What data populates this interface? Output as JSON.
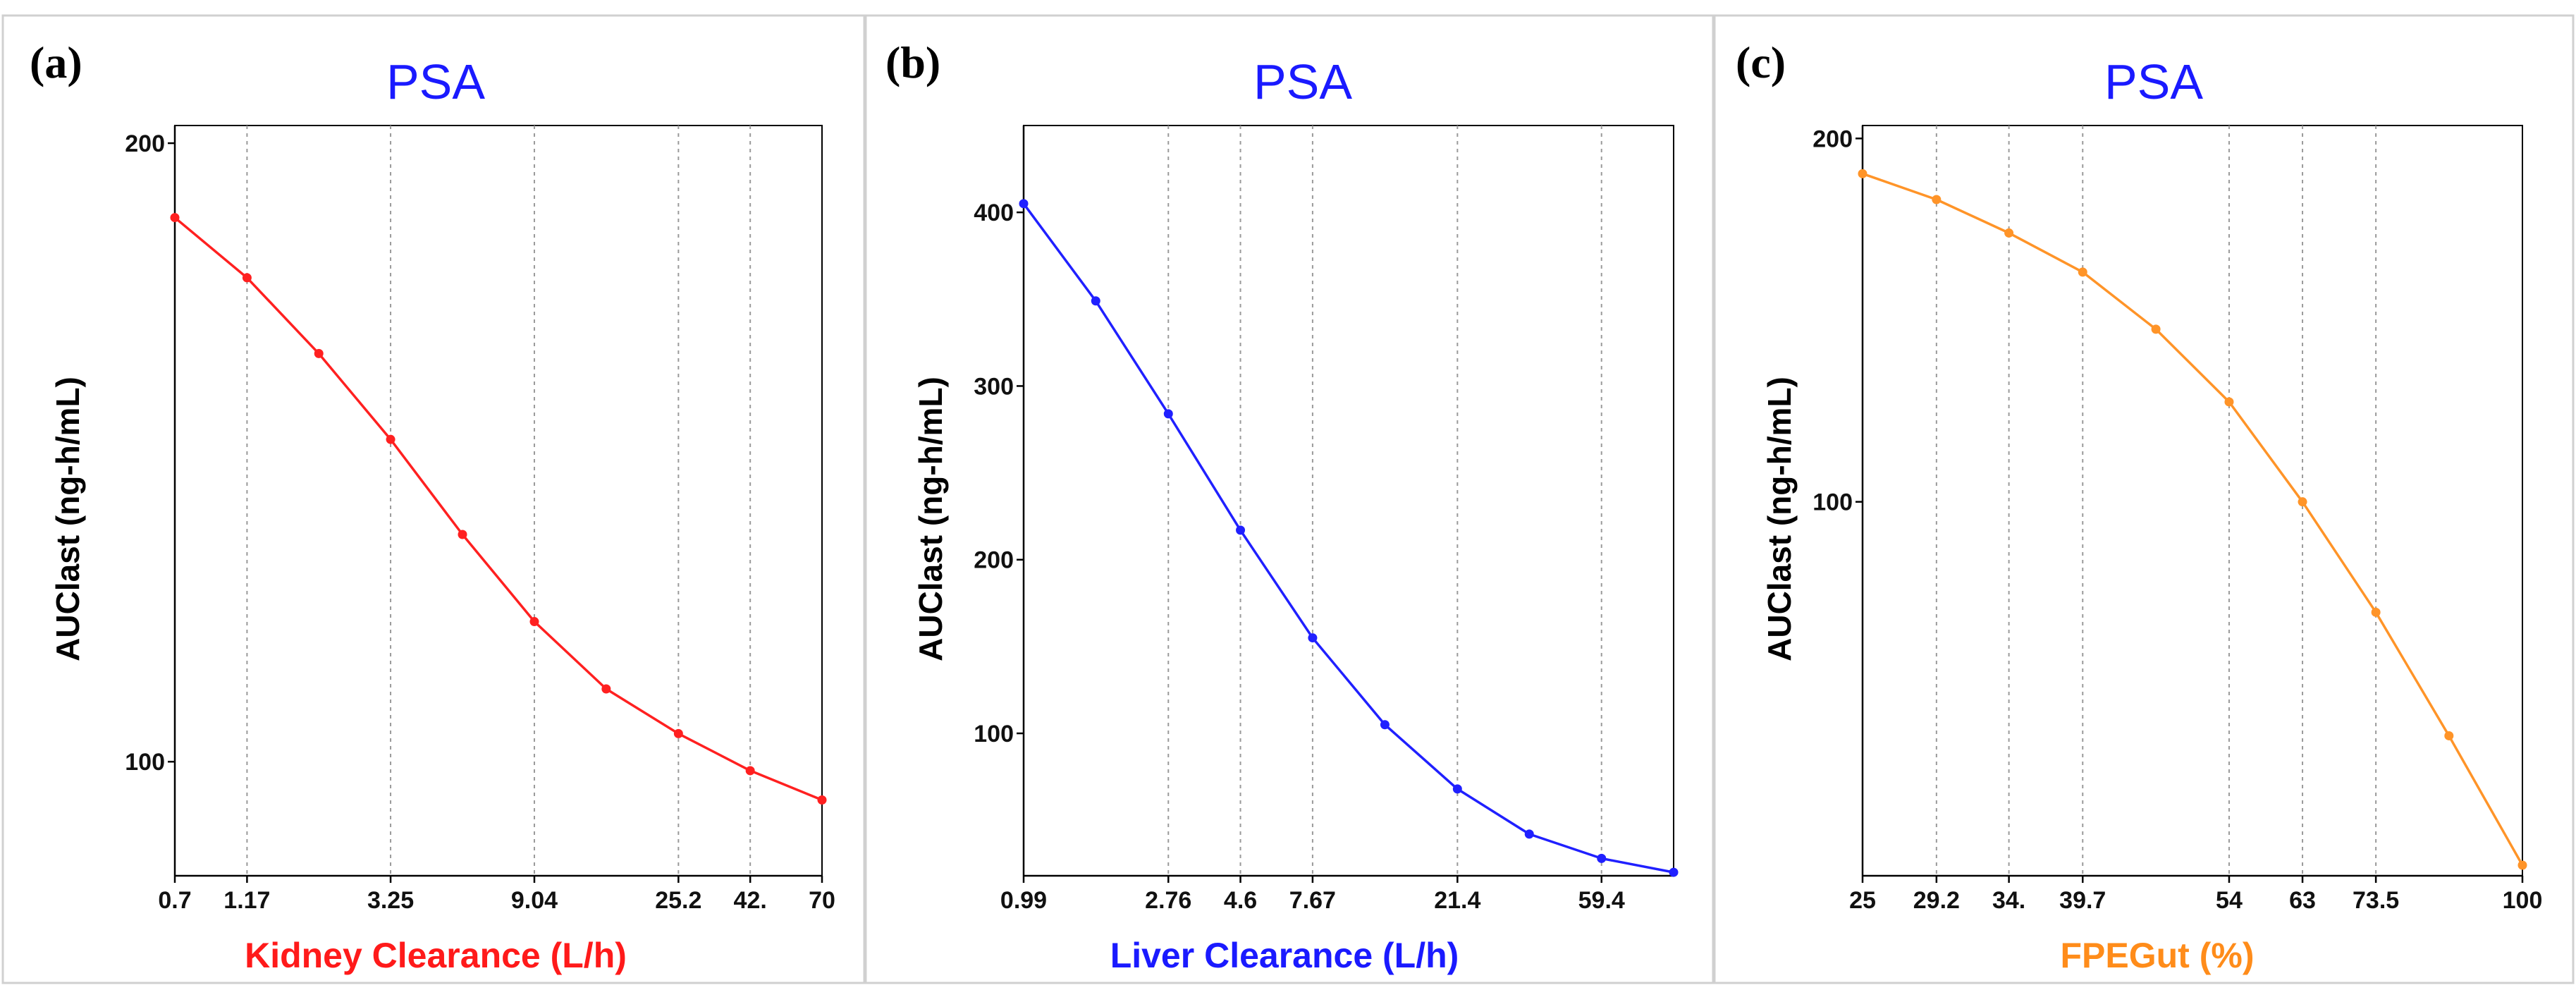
{
  "chart_data": [
    {
      "type": "line",
      "panel_label": "(a)",
      "title": "PSA",
      "title_color": "#1a1aff",
      "xlabel": "Kidney Clearance (L/h)",
      "xlabel_color": "#ff1a1a",
      "ylabel": "AUClast (ng-h/mL)",
      "series_color": "#ff2020",
      "xscale": "log",
      "yscale": "log",
      "xlim": [
        0.7,
        70
      ],
      "ylim": [
        88,
        204
      ],
      "xticks": [
        0.7,
        1.17,
        3.25,
        9.04,
        25.2,
        42.0,
        70
      ],
      "xtick_labels": [
        "0.7",
        "1.17",
        "3.25",
        "9.04",
        "25.2",
        "42.",
        "70"
      ],
      "yticks": [
        100,
        200
      ],
      "ytick_labels": [
        "100",
        "200"
      ],
      "grid": "vertical-dashed",
      "x": [
        0.7,
        1.17,
        1.95,
        3.25,
        5.42,
        9.04,
        15.07,
        25.2,
        42.0,
        70
      ],
      "y": [
        184,
        172,
        158,
        143.5,
        129,
        117,
        108.5,
        103.2,
        99.0,
        95.8
      ]
    },
    {
      "type": "line",
      "panel_label": "(b)",
      "title": "PSA",
      "title_color": "#1a1aff",
      "xlabel": "Liver Clearance (L/h)",
      "xlabel_color": "#1a1aff",
      "ylabel": "AUClast (ng-h/mL)",
      "series_color": "#2020ff",
      "xscale": "log",
      "yscale": "linear",
      "xlim": [
        0.99,
        99
      ],
      "ylim": [
        18,
        450
      ],
      "xticks": [
        0.99,
        2.76,
        4.6,
        7.67,
        21.4,
        59.4
      ],
      "xtick_labels": [
        "0.99",
        "2.76",
        "4.6",
        "7.67",
        "21.4",
        "59.4"
      ],
      "yticks": [
        100,
        200,
        300,
        400
      ],
      "ytick_labels": [
        "100",
        "200",
        "300",
        "400"
      ],
      "grid": "vertical-dashed",
      "x": [
        0.99,
        1.65,
        2.76,
        4.6,
        7.67,
        12.8,
        21.4,
        35.6,
        59.4,
        99
      ],
      "y": [
        405,
        349,
        284,
        217,
        155,
        105,
        68,
        42,
        28,
        20
      ]
    },
    {
      "type": "line",
      "panel_label": "(c)",
      "title": "PSA",
      "title_color": "#1a1aff",
      "xlabel": "FPEGut (%)",
      "xlabel_color": "#ff8c1a",
      "ylabel": "AUClast (ng-h/mL)",
      "series_color": "#ff9428",
      "xscale": "log",
      "yscale": "log",
      "xlim": [
        25,
        100
      ],
      "ylim": [
        49,
        205
      ],
      "xticks": [
        25,
        29.2,
        34.0,
        39.7,
        54,
        63,
        73.5,
        100
      ],
      "xtick_labels": [
        "25",
        "29.2",
        "34.",
        "39.7",
        "54",
        "63",
        "73.5",
        "100"
      ],
      "yticks": [
        100,
        200
      ],
      "ytick_labels": [
        "100",
        "200"
      ],
      "grid": "vertical-dashed",
      "x": [
        25,
        29.2,
        34.0,
        39.7,
        46.3,
        54,
        63,
        73.5,
        85.7,
        100
      ],
      "y": [
        187,
        178,
        167,
        155,
        139,
        121,
        100,
        81,
        64,
        50
      ]
    }
  ]
}
